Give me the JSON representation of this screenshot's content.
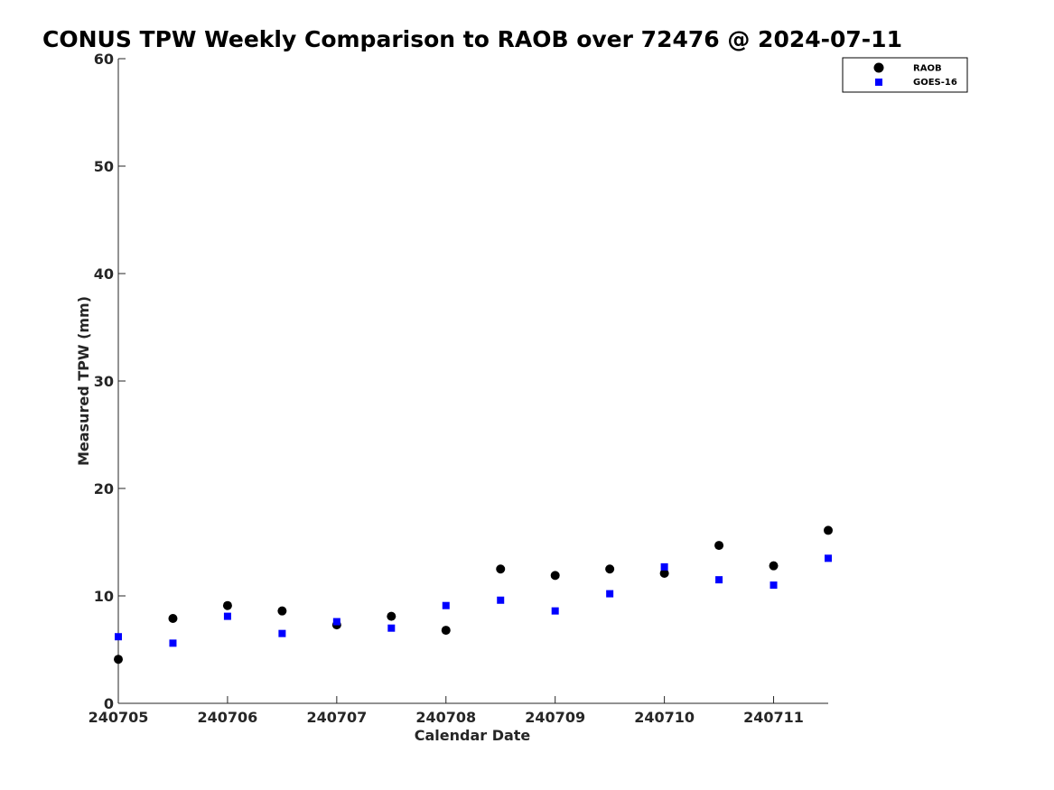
{
  "chart_data": {
    "type": "scatter",
    "title": "CONUS TPW Weekly Comparison to RAOB over 72476 @ 2024-07-11",
    "xlabel": "Calendar Date",
    "ylabel": "Measured TPW (mm)",
    "xlim": [
      "240705",
      "240711 12Z"
    ],
    "ylim": [
      0,
      60
    ],
    "x_tick_labels": [
      "240705",
      "240706",
      "240707",
      "240708",
      "240709",
      "240710",
      "240711"
    ],
    "y_ticks": [
      0,
      10,
      20,
      30,
      40,
      50,
      60
    ],
    "grid": false,
    "legend_position": "top-right",
    "x": [
      "240705 00Z",
      "240705 12Z",
      "240706 00Z",
      "240706 12Z",
      "240707 00Z",
      "240707 12Z",
      "240708 00Z",
      "240708 12Z",
      "240709 00Z",
      "240709 12Z",
      "240710 00Z",
      "240710 12Z",
      "240711 00Z",
      "240711 12Z"
    ],
    "series": [
      {
        "name": "RAOB",
        "marker": "circle",
        "color": "#000000",
        "values": [
          4.1,
          7.9,
          9.1,
          8.6,
          7.3,
          8.1,
          6.8,
          12.5,
          11.9,
          12.5,
          12.1,
          14.7,
          12.8,
          16.1
        ]
      },
      {
        "name": "GOES-16",
        "marker": "square",
        "color": "#0000ff",
        "values": [
          6.2,
          5.6,
          8.1,
          6.5,
          7.6,
          7.0,
          9.1,
          9.6,
          8.6,
          10.2,
          12.7,
          11.5,
          11.0,
          13.5
        ]
      }
    ]
  }
}
